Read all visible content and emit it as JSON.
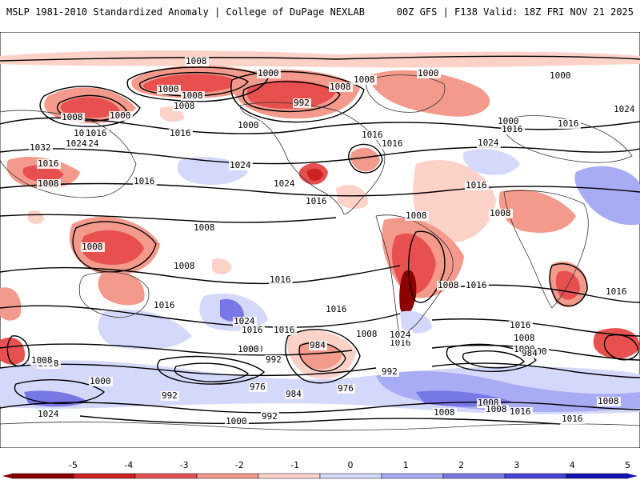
{
  "header": {
    "left": "MSLP 1981-2010 Standardized Anomaly | College of DuPage NEXLAB",
    "right": "00Z GFS | F138 Valid: 18Z FRI NOV 21 2025"
  },
  "colors": {
    "neg5": "#8e0000",
    "neg4": "#cc2222",
    "neg3": "#e85050",
    "neg2": "#f39a8c",
    "neg1": "#fcd2c8",
    "zero": "#ffffff",
    "pos1": "#d4d8fb",
    "pos2": "#a8acf4",
    "pos3": "#7777e6",
    "pos4": "#4444d6",
    "pos5": "#1414b4",
    "land": "#333333",
    "isobar": "#000000"
  },
  "contour_labels": [
    "1008",
    "1008",
    "1000",
    "1000",
    "1008",
    "992",
    "1008",
    "1000",
    "1000",
    "1016",
    "1008",
    "1000",
    "1016",
    "1024",
    "1032",
    "1024",
    "1016",
    "1008",
    "1016",
    "1016",
    "1024",
    "1024",
    "1016",
    "1000",
    "1016",
    "1016",
    "1000",
    "1008",
    "1024",
    "1016",
    "1016",
    "1008",
    "1008",
    "1008",
    "1016",
    "1008",
    "1016",
    "1008",
    "1016",
    "1016",
    "1016",
    "1016",
    "1024",
    "1016",
    "1024",
    "1008",
    "1016",
    "1016",
    "1000",
    "1008",
    "984",
    "992",
    "992",
    "1000",
    "1000",
    "984",
    "976",
    "976",
    "984",
    "992",
    "1000",
    "992",
    "1024",
    "1008",
    "1008",
    "1016",
    "1016",
    "1008",
    "1008",
    "1008",
    "1008",
    "1016",
    "1000",
    "1000",
    "1008",
    "1024"
  ],
  "colorbar": {
    "ticks": [
      "-5",
      "-4",
      "-3",
      "-2",
      "-1",
      "0",
      "1",
      "2",
      "3",
      "4",
      "5"
    ]
  }
}
